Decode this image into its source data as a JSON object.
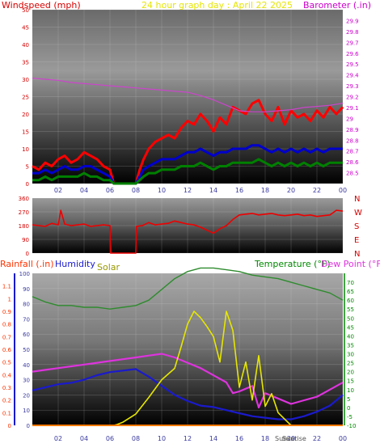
{
  "colors": {
    "wind_speed": "#ff0000",
    "wind_avg": "#0000cc",
    "wind_low": "#008000",
    "barometer": "#cc44cc",
    "direction": "#ee0000",
    "rainfall": "#ff7a00",
    "humidity": "#1a1acc",
    "solar": "#e6e600",
    "temperature": "#2e8b2e",
    "dew_point": "#dd33dd",
    "left_axis": "#d80000",
    "right_axis_top": "#cc00cc",
    "grid": "#d8d8d8"
  },
  "chart_data": [
    {
      "type": "line",
      "title": "24 hour graph day : April 22 2025",
      "ylabel": "Windspeed (mph)",
      "y2label": "Barometer (.in)",
      "ylim": [
        0,
        50
      ],
      "y2lim": [
        28.4,
        30.0
      ],
      "yticks": [
        "0",
        "5",
        "10",
        "15",
        "20",
        "25",
        "30",
        "35",
        "40",
        "45",
        "50"
      ],
      "y2ticks": [
        "28.5",
        "28.6",
        "28.7",
        "28.8",
        "28.9",
        "29",
        "29.1",
        "29.2",
        "29.3",
        "29.4",
        "29.5",
        "29.6",
        "29.7",
        "29.8",
        "29.9"
      ],
      "xticks": [
        "02",
        "04",
        "06",
        "08",
        "10",
        "12",
        "14",
        "16",
        "18",
        "20",
        "22",
        "00"
      ],
      "xlim": [
        0,
        24
      ],
      "series": [
        {
          "key": "gust",
          "x": [
            0,
            0.5,
            1,
            1.5,
            2,
            2.5,
            3,
            3.5,
            4,
            4.5,
            5,
            5.5,
            6,
            6.3,
            6.5,
            7,
            8,
            8.3,
            8.6,
            9,
            9.5,
            10,
            10.5,
            11,
            11.5,
            12,
            12.5,
            13,
            13.5,
            14,
            14.5,
            15,
            15.5,
            16,
            16.5,
            17,
            17.5,
            18,
            18.5,
            19,
            19.5,
            20,
            20.5,
            21,
            21.5,
            22,
            22.5,
            23,
            23.5,
            24
          ],
          "values": [
            5,
            4,
            6,
            5,
            7,
            8,
            6,
            7,
            9,
            8,
            7,
            5,
            4,
            0,
            0,
            0,
            0,
            4,
            7,
            10,
            12,
            13,
            14,
            13,
            16,
            18,
            17,
            20,
            18,
            15,
            19,
            17,
            22,
            21,
            20,
            23,
            24,
            20,
            18,
            22,
            17,
            21,
            19,
            20,
            18,
            21,
            19,
            22,
            20,
            22
          ]
        },
        {
          "key": "average",
          "x": [
            0,
            0.5,
            1,
            1.5,
            2,
            2.5,
            3,
            3.5,
            4,
            4.5,
            5,
            5.5,
            6,
            6.3,
            6.5,
            7,
            8,
            8.3,
            8.6,
            9,
            9.5,
            10,
            10.5,
            11,
            11.5,
            12,
            12.5,
            13,
            13.5,
            14,
            14.5,
            15,
            15.5,
            16,
            16.5,
            17,
            17.5,
            18,
            18.5,
            19,
            19.5,
            20,
            20.5,
            21,
            21.5,
            22,
            22.5,
            23,
            23.5,
            24
          ],
          "values": [
            3,
            3,
            4,
            3,
            4,
            5,
            4,
            4,
            5,
            5,
            4,
            3,
            2,
            0,
            0,
            0,
            0,
            2,
            4,
            5,
            6,
            7,
            7,
            7,
            8,
            9,
            9,
            10,
            9,
            8,
            9,
            9,
            10,
            10,
            10,
            11,
            11,
            10,
            9,
            10,
            9,
            10,
            9,
            10,
            9,
            10,
            9,
            10,
            10,
            10
          ]
        },
        {
          "key": "low",
          "x": [
            0,
            0.5,
            1,
            1.5,
            2,
            2.5,
            3,
            3.5,
            4,
            4.5,
            5,
            5.5,
            6,
            6.3,
            6.5,
            7,
            8,
            8.3,
            8.6,
            9,
            9.5,
            10,
            10.5,
            11,
            11.5,
            12,
            12.5,
            13,
            13.5,
            14,
            14.5,
            15,
            15.5,
            16,
            16.5,
            17,
            17.5,
            18,
            18.5,
            19,
            19.5,
            20,
            20.5,
            21,
            21.5,
            22,
            22.5,
            23,
            23.5,
            24
          ],
          "values": [
            1,
            1,
            2,
            1,
            2,
            2,
            2,
            2,
            3,
            2,
            2,
            1,
            1,
            0,
            0,
            0,
            0,
            1,
            2,
            3,
            3,
            4,
            4,
            4,
            5,
            5,
            5,
            6,
            5,
            4,
            5,
            5,
            6,
            6,
            6,
            6,
            7,
            6,
            5,
            6,
            5,
            6,
            5,
            6,
            5,
            6,
            5,
            6,
            6,
            6
          ]
        },
        {
          "key": "barometer",
          "axis": "right",
          "x": [
            0,
            1,
            2,
            3,
            4,
            5,
            6,
            7,
            8,
            9,
            10,
            11,
            12,
            13,
            14,
            15,
            16,
            17,
            18,
            19,
            20,
            21,
            22,
            23,
            24
          ],
          "values": [
            29.37,
            29.36,
            29.35,
            29.33,
            29.32,
            29.31,
            29.3,
            29.29,
            29.28,
            29.27,
            29.26,
            29.25,
            29.24,
            29.21,
            29.17,
            29.12,
            29.07,
            29.06,
            29.06,
            29.07,
            29.08,
            29.1,
            29.11,
            29.12,
            29.14
          ]
        }
      ]
    },
    {
      "type": "line",
      "yticks": [
        "0",
        "90",
        "180",
        "270",
        "360"
      ],
      "ylim": [
        0,
        360
      ],
      "dir_labels": [
        "N",
        "W",
        "S",
        "E",
        "N"
      ],
      "xlim": [
        0,
        24
      ],
      "series": [
        {
          "key": "direction",
          "x": [
            0,
            0.5,
            1,
            1.5,
            2,
            2.2,
            2.5,
            3,
            3.5,
            4,
            4.5,
            5,
            5.5,
            6,
            6.05,
            6.5,
            7,
            7.5,
            8,
            8.05,
            8.5,
            9,
            9.5,
            10,
            10.5,
            11,
            11.5,
            12,
            12.5,
            13,
            13.5,
            14,
            14.5,
            15,
            15.5,
            16,
            16.5,
            17,
            17.5,
            18,
            18.5,
            19,
            19.5,
            20,
            20.5,
            21,
            21.5,
            22,
            22.5,
            23,
            23.5,
            24
          ],
          "values": [
            185,
            180,
            175,
            195,
            185,
            280,
            190,
            180,
            185,
            190,
            175,
            180,
            185,
            180,
            0,
            0,
            0,
            0,
            0,
            175,
            180,
            200,
            185,
            190,
            195,
            210,
            200,
            190,
            185,
            170,
            150,
            130,
            160,
            180,
            220,
            250,
            255,
            260,
            250,
            255,
            260,
            250,
            245,
            250,
            255,
            245,
            250,
            240,
            245,
            250,
            280,
            275
          ]
        }
      ]
    },
    {
      "type": "line",
      "ylabel": "Rainfall (.in)",
      "ylabel2": "Humidity",
      "ylabel3": "Solar",
      "y2label": "Temperature (°F)",
      "y2label2": "Dew Point (°F)",
      "ylim_rain": [
        0,
        1.2
      ],
      "ylim_hum": [
        0,
        100
      ],
      "ylim_solar": [
        0,
        1200
      ],
      "y2lim": [
        -10,
        75
      ],
      "yticks_rain": [
        "0",
        "0.1",
        "0.2",
        "0.3",
        "0.4",
        "0.5",
        "0.6",
        "0.7",
        "0.8",
        "0.9",
        "1",
        "1.1"
      ],
      "yticks_hum": [
        "0",
        "10",
        "20",
        "30",
        "40",
        "50",
        "60",
        "70",
        "80",
        "90",
        "100"
      ],
      "y2ticks": [
        "-10",
        "-5",
        "0",
        "5",
        "10",
        "15",
        "20",
        "25",
        "30",
        "35",
        "40",
        "45",
        "50",
        "55",
        "60",
        "65",
        "70"
      ],
      "xticks": [
        "02",
        "04",
        "06",
        "08",
        "10",
        "12",
        "14",
        "16",
        "18",
        "20",
        "22",
        "00"
      ],
      "sun_labels": [
        "Sunset",
        "Sunrise"
      ],
      "xlim": [
        0,
        24
      ],
      "series": [
        {
          "key": "temperature",
          "axis": "right",
          "x": [
            0,
            1,
            2,
            3,
            4,
            5,
            6,
            7,
            8,
            9,
            10,
            11,
            12,
            13,
            14,
            15,
            16,
            17,
            18,
            19,
            20,
            21,
            22,
            23,
            24
          ],
          "values": [
            62,
            59,
            57,
            57,
            56,
            56,
            55,
            56,
            57,
            60,
            66,
            72,
            76,
            78,
            78,
            77,
            76,
            74,
            73,
            72,
            70,
            68,
            66,
            64,
            60
          ]
        },
        {
          "key": "dew_point",
          "axis": "right",
          "x": [
            0,
            1,
            2,
            3,
            4,
            5,
            6,
            7,
            8,
            9,
            10,
            11,
            12,
            13,
            14,
            15,
            15.5,
            16,
            17,
            17.5,
            18,
            19,
            20,
            21,
            22,
            23,
            24
          ],
          "values": [
            20,
            21,
            22,
            23,
            24,
            25,
            26,
            27,
            28,
            29,
            30,
            28,
            25,
            22,
            18,
            14,
            8,
            9,
            12,
            0,
            8,
            5,
            2,
            4,
            6,
            10,
            14
          ]
        },
        {
          "key": "humidity",
          "x": [
            0,
            1,
            2,
            3,
            4,
            5,
            6,
            7,
            8,
            9,
            10,
            11,
            12,
            13,
            14,
            15,
            16,
            17,
            18,
            19,
            20,
            21,
            22,
            23,
            24
          ],
          "values": [
            23,
            25,
            27,
            28,
            30,
            33,
            35,
            36,
            37,
            32,
            26,
            20,
            16,
            13,
            12,
            10,
            8,
            6,
            5,
            4,
            4,
            6,
            9,
            13,
            20
          ]
        },
        {
          "key": "solar",
          "x": [
            0,
            6.3,
            6.5,
            7,
            8,
            9,
            10,
            11,
            11.5,
            12,
            12.5,
            13,
            13.5,
            14,
            14.5,
            15,
            15.5,
            16,
            16.5,
            17,
            17.5,
            18,
            18.5,
            19,
            19.5,
            20,
            24
          ],
          "values": [
            0,
            0,
            5,
            25,
            90,
            220,
            360,
            450,
            620,
            800,
            900,
            850,
            780,
            700,
            500,
            900,
            750,
            300,
            500,
            200,
            550,
            150,
            250,
            100,
            50,
            0,
            0
          ]
        },
        {
          "key": "rainfall",
          "x": [
            0,
            24
          ],
          "values": [
            0,
            0
          ]
        }
      ]
    }
  ]
}
